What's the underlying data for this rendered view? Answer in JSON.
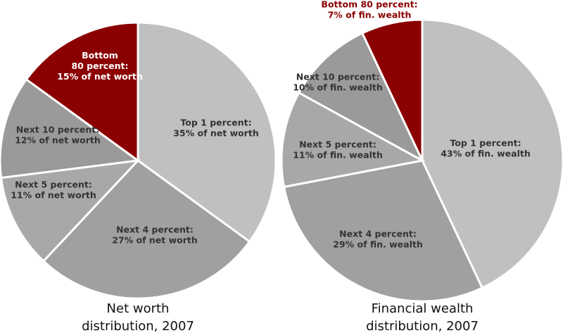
{
  "chart_data": [
    {
      "type": "pie",
      "title_lines": [
        "Net worth",
        "distribution, 2007"
      ],
      "slices": [
        {
          "lines": [
            "Top 1 percent:",
            "35% of net worth"
          ],
          "value": 35,
          "color": "#c0c0c0",
          "text": "dark"
        },
        {
          "lines": [
            "Next 4 percent:",
            "27% of net worth"
          ],
          "value": 27,
          "color": "#a0a0a0",
          "text": "dark"
        },
        {
          "lines": [
            "Next 5 percent:",
            "11% of net worth"
          ],
          "value": 11,
          "color": "#a8a8a8",
          "text": "dark"
        },
        {
          "lines": [
            "Next 10 percent:",
            "12% of net worth"
          ],
          "value": 12,
          "color": "#9a9a9a",
          "text": "dark"
        },
        {
          "lines": [
            "Bottom",
            "80 percent:",
            "15% of net worth"
          ],
          "value": 15,
          "color": "#8b0000",
          "text": "light"
        }
      ]
    },
    {
      "type": "pie",
      "title_lines": [
        "Financial wealth",
        "distribution, 2007"
      ],
      "slices": [
        {
          "lines": [
            "Top 1 percent:",
            "43% of fin. wealth"
          ],
          "value": 43,
          "color": "#c0c0c0",
          "text": "dark"
        },
        {
          "lines": [
            "Next 4 percent:",
            "29% of fin. wealth"
          ],
          "value": 29,
          "color": "#a0a0a0",
          "text": "dark"
        },
        {
          "lines": [
            "Next 5 percent:",
            "11% of fin. wealth"
          ],
          "value": 11,
          "color": "#a8a8a8",
          "text": "dark"
        },
        {
          "lines": [
            "Next 10 percent:",
            "10% of fin. wealth"
          ],
          "value": 10,
          "color": "#9a9a9a",
          "text": "dark"
        },
        {
          "lines": [
            "Bottom 80 percent:",
            "7% of fin. wealth"
          ],
          "value": 7,
          "color": "#8b0000",
          "text": "red"
        }
      ]
    }
  ]
}
